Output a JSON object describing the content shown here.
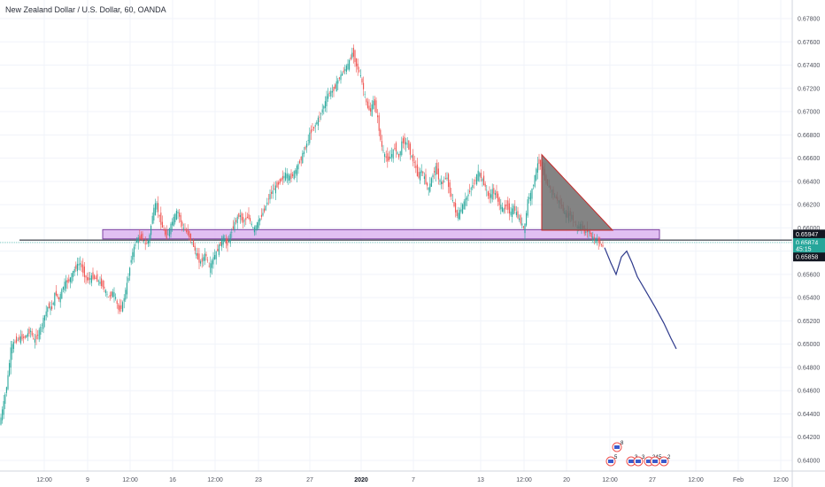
{
  "chart_data": {
    "type": "candlestick",
    "title": "New Zealand Dollar / U.S. Dollar, 60, OANDA",
    "colors": {
      "up": "#26a69a",
      "down": "#ef5350",
      "zone_fill": "#dcb4f0",
      "zone_stroke": "#7b3fa0",
      "triangle_fill": "#6e6e6e",
      "forecast_line": "#2e3a8c",
      "tag_black": "#131722",
      "tag_green": "#26a69a"
    },
    "y_axis": {
      "ticks": [
        "0.67800",
        "0.67600",
        "0.67400",
        "0.67200",
        "0.67000",
        "0.66800",
        "0.66600",
        "0.66400",
        "0.66200",
        "0.66000",
        "0.65800",
        "0.65600",
        "0.65400",
        "0.65200",
        "0.65000",
        "0.64800",
        "0.64600",
        "0.64400",
        "0.64200",
        "0.64000"
      ]
    },
    "x_axis": {
      "ticks": [
        {
          "label": "12:00",
          "x": 50
        },
        {
          "label": "9",
          "x": 99
        },
        {
          "label": "12:00",
          "x": 147
        },
        {
          "label": "16",
          "x": 195
        },
        {
          "label": "12:00",
          "x": 243
        },
        {
          "label": "23",
          "x": 292
        },
        {
          "label": "27",
          "x": 350
        },
        {
          "label": "2020",
          "x": 408,
          "bold": true
        },
        {
          "label": "7",
          "x": 467
        },
        {
          "label": "13",
          "x": 543
        },
        {
          "label": "12:00",
          "x": 592
        },
        {
          "label": "20",
          "x": 640
        },
        {
          "label": "12:00",
          "x": 689
        },
        {
          "label": "27",
          "x": 737
        },
        {
          "label": "12:00",
          "x": 786
        },
        {
          "label": "Feb",
          "x": 834
        },
        {
          "label": "12:00",
          "x": 882
        }
      ]
    },
    "price_path": [
      [
        0,
        0.6427
      ],
      [
        5,
        0.6446
      ],
      [
        10,
        0.6468
      ],
      [
        14,
        0.6497
      ],
      [
        18,
        0.6502
      ],
      [
        24,
        0.6505
      ],
      [
        30,
        0.6506
      ],
      [
        36,
        0.6512
      ],
      [
        40,
        0.6502
      ],
      [
        46,
        0.6511
      ],
      [
        52,
        0.6524
      ],
      [
        56,
        0.6533
      ],
      [
        60,
        0.653
      ],
      [
        64,
        0.6545
      ],
      [
        68,
        0.6538
      ],
      [
        74,
        0.6552
      ],
      [
        80,
        0.6555
      ],
      [
        84,
        0.6562
      ],
      [
        88,
        0.6567
      ],
      [
        92,
        0.657
      ],
      [
        96,
        0.6561
      ],
      [
        100,
        0.6555
      ],
      [
        106,
        0.6558
      ],
      [
        112,
        0.6555
      ],
      [
        118,
        0.655
      ],
      [
        124,
        0.654
      ],
      [
        130,
        0.6545
      ],
      [
        136,
        0.6528
      ],
      [
        140,
        0.6534
      ],
      [
        146,
        0.6555
      ],
      [
        150,
        0.6575
      ],
      [
        156,
        0.659
      ],
      [
        162,
        0.6592
      ],
      [
        166,
        0.6585
      ],
      [
        170,
        0.659
      ],
      [
        174,
        0.6612
      ],
      [
        178,
        0.6622
      ],
      [
        182,
        0.6608
      ],
      [
        186,
        0.6598
      ],
      [
        190,
        0.6592
      ],
      [
        196,
        0.6605
      ],
      [
        202,
        0.6615
      ],
      [
        208,
        0.66
      ],
      [
        214,
        0.6595
      ],
      [
        220,
        0.6585
      ],
      [
        224,
        0.6575
      ],
      [
        228,
        0.657
      ],
      [
        234,
        0.6578
      ],
      [
        238,
        0.6565
      ],
      [
        242,
        0.6573
      ],
      [
        248,
        0.6582
      ],
      [
        254,
        0.6592
      ],
      [
        258,
        0.6585
      ],
      [
        262,
        0.6594
      ],
      [
        266,
        0.6603
      ],
      [
        272,
        0.6612
      ],
      [
        276,
        0.6605
      ],
      [
        282,
        0.661
      ],
      [
        288,
        0.6598
      ],
      [
        294,
        0.6606
      ],
      [
        300,
        0.6615
      ],
      [
        306,
        0.6628
      ],
      [
        312,
        0.6634
      ],
      [
        318,
        0.664
      ],
      [
        324,
        0.6646
      ],
      [
        330,
        0.6643
      ],
      [
        336,
        0.665
      ],
      [
        342,
        0.666
      ],
      [
        348,
        0.6672
      ],
      [
        352,
        0.6682
      ],
      [
        356,
        0.6686
      ],
      [
        362,
        0.6695
      ],
      [
        368,
        0.6706
      ],
      [
        372,
        0.6715
      ],
      [
        378,
        0.6718
      ],
      [
        384,
        0.6728
      ],
      [
        390,
        0.6735
      ],
      [
        396,
        0.6742
      ],
      [
        400,
        0.6752
      ],
      [
        404,
        0.674
      ],
      [
        408,
        0.6733
      ],
      [
        412,
        0.672
      ],
      [
        416,
        0.6705
      ],
      [
        420,
        0.67
      ],
      [
        424,
        0.671
      ],
      [
        428,
        0.6695
      ],
      [
        432,
        0.6672
      ],
      [
        436,
        0.6662
      ],
      [
        440,
        0.6658
      ],
      [
        444,
        0.6663
      ],
      [
        448,
        0.667
      ],
      [
        452,
        0.666
      ],
      [
        456,
        0.6675
      ],
      [
        462,
        0.6672
      ],
      [
        466,
        0.6662
      ],
      [
        470,
        0.6655
      ],
      [
        474,
        0.6643
      ],
      [
        478,
        0.665
      ],
      [
        482,
        0.664
      ],
      [
        486,
        0.6633
      ],
      [
        490,
        0.6645
      ],
      [
        494,
        0.6652
      ],
      [
        498,
        0.664
      ],
      [
        502,
        0.6638
      ],
      [
        506,
        0.6645
      ],
      [
        510,
        0.663
      ],
      [
        514,
        0.662
      ],
      [
        518,
        0.661
      ],
      [
        522,
        0.6615
      ],
      [
        526,
        0.6622
      ],
      [
        530,
        0.6628
      ],
      [
        534,
        0.6635
      ],
      [
        538,
        0.664
      ],
      [
        542,
        0.6648
      ],
      [
        546,
        0.6642
      ],
      [
        550,
        0.6635
      ],
      [
        554,
        0.6625
      ],
      [
        558,
        0.6632
      ],
      [
        562,
        0.6628
      ],
      [
        566,
        0.662
      ],
      [
        570,
        0.6615
      ],
      [
        574,
        0.662
      ],
      [
        578,
        0.6612
      ],
      [
        582,
        0.6618
      ],
      [
        586,
        0.661
      ],
      [
        590,
        0.6605
      ],
      [
        594,
        0.6598
      ],
      [
        598,
        0.6625
      ],
      [
        602,
        0.663
      ],
      [
        606,
        0.6645
      ],
      [
        610,
        0.6658
      ],
      [
        614,
        0.665
      ],
      [
        618,
        0.664
      ],
      [
        622,
        0.6635
      ],
      [
        626,
        0.663
      ],
      [
        630,
        0.6625
      ],
      [
        634,
        0.6622
      ],
      [
        638,
        0.6615
      ],
      [
        642,
        0.661
      ],
      [
        646,
        0.6612
      ],
      [
        650,
        0.6605
      ],
      [
        654,
        0.66
      ],
      [
        658,
        0.6603
      ],
      [
        662,
        0.6596
      ],
      [
        666,
        0.6598
      ],
      [
        670,
        0.6592
      ],
      [
        674,
        0.659
      ],
      [
        678,
        0.6588
      ],
      [
        682,
        0.6584
      ]
    ],
    "forecast": [
      [
        683,
        0.6583
      ],
      [
        690,
        0.657
      ],
      [
        696,
        0.656
      ],
      [
        702,
        0.6575
      ],
      [
        708,
        0.658
      ],
      [
        714,
        0.657
      ],
      [
        720,
        0.6558
      ],
      [
        730,
        0.6545
      ],
      [
        740,
        0.6532
      ],
      [
        750,
        0.6518
      ],
      [
        758,
        0.6505
      ],
      [
        764,
        0.6496
      ]
    ],
    "zone": {
      "x_from": 116,
      "x_to": 745,
      "price_top": 0.65985,
      "price_bottom": 0.65905
    },
    "support_line": {
      "x_from": 22,
      "x_to": 895,
      "price": 0.65895
    },
    "triangle": [
      [
        612,
        0.6663
      ],
      [
        612,
        0.6598
      ],
      [
        692,
        0.6598
      ]
    ],
    "price_tags": [
      {
        "label": "0.65947",
        "price": 0.65947,
        "style": "black"
      },
      {
        "label": "0.65874",
        "price": 0.65874,
        "style": "green"
      },
      {
        "label": "45:15",
        "price": 0.6582,
        "style": "green"
      },
      {
        "label": "0.65858",
        "price": 0.6575,
        "style": "black"
      }
    ],
    "event_markers": [
      {
        "label": "8",
        "x": 697,
        "row": 0
      },
      {
        "label": "5",
        "x": 690,
        "row": 1
      },
      {
        "label": "3",
        "x": 713,
        "row": 1
      },
      {
        "label": "3",
        "x": 721,
        "row": 1
      },
      {
        "label": "24",
        "x": 733,
        "row": 1
      },
      {
        "label": "5",
        "x": 740,
        "row": 1
      },
      {
        "label": "2",
        "x": 750,
        "row": 1
      }
    ]
  }
}
